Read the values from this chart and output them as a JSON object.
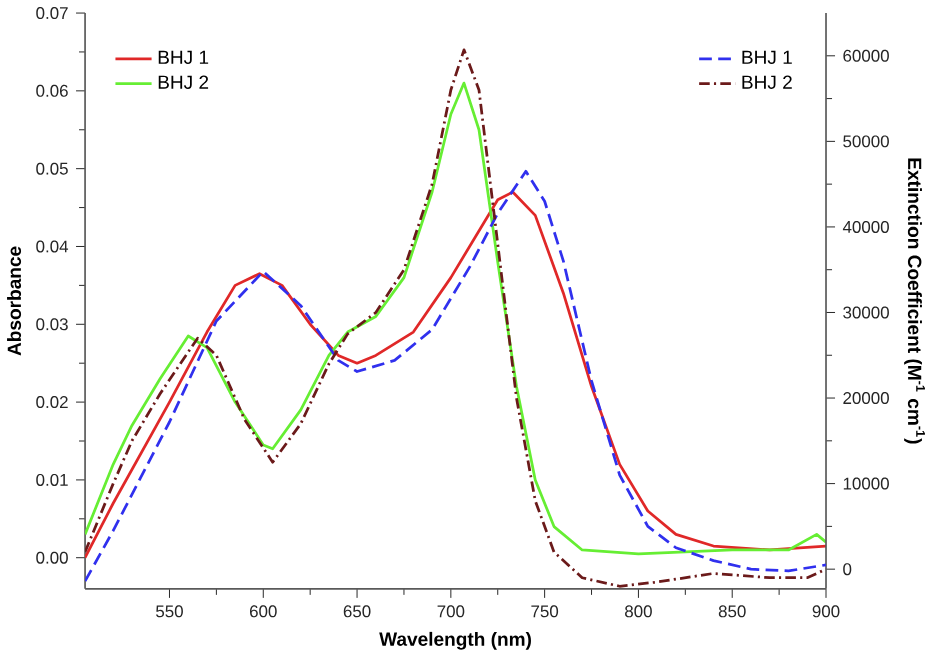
{
  "chart_data": {
    "type": "line",
    "xlabel": "Wavelength (nm)",
    "ylabel": "Absorbance",
    "y2label": "Extinction Coefficient (M$^{-1}$ cm$^{-1}$)",
    "xlim": [
      505,
      900
    ],
    "xticks": [
      550,
      600,
      650,
      700,
      750,
      800,
      850,
      900
    ],
    "ylim": [
      -0.004,
      0.07
    ],
    "yticks": [
      {
        "value": 0,
        "label": "0.00"
      },
      {
        "value": 0.01,
        "label": "0.01"
      },
      {
        "value": 0.02,
        "label": "0.02"
      },
      {
        "value": 0.03,
        "label": "0.03"
      },
      {
        "value": 0.04,
        "label": "0.04"
      },
      {
        "value": 0.05,
        "label": "0.05"
      },
      {
        "value": 0.06,
        "label": "0.06"
      },
      {
        "value": 0.07,
        "label": "0.07"
      }
    ],
    "y2lim": [
      -2300,
      65000
    ],
    "y2ticks": [
      0,
      10000,
      20000,
      30000,
      40000,
      50000,
      60000
    ],
    "grid": false,
    "legend": "top left",
    "marker": "none",
    "series": [
      {
        "name": "BHJ 1",
        "color": "#e02828",
        "line_style": "solid",
        "x": [
          505,
          520,
          550,
          570,
          585,
          598,
          610,
          625,
          640,
          650,
          660,
          680,
          700,
          715,
          725,
          733,
          745,
          760,
          775,
          790,
          805,
          820,
          840,
          870,
          900
        ],
        "values": [
          0.0,
          0.007,
          0.02,
          0.029,
          0.035,
          0.0365,
          0.035,
          0.03,
          0.026,
          0.025,
          0.026,
          0.029,
          0.036,
          0.042,
          0.046,
          0.047,
          0.044,
          0.034,
          0.022,
          0.012,
          0.006,
          0.003,
          0.0015,
          0.001,
          0.0015
        ]
      },
      {
        "name": "BHJ 2",
        "color": "#66ee33",
        "line_style": "solid",
        "x": [
          505,
          520,
          530,
          545,
          560,
          570,
          585,
          600,
          605,
          620,
          635,
          645,
          660,
          675,
          690,
          700,
          707,
          715,
          725,
          735,
          745,
          755,
          770,
          800,
          850,
          880,
          895,
          900
        ],
        "values": [
          0.003,
          0.012,
          0.017,
          0.023,
          0.0285,
          0.027,
          0.02,
          0.0145,
          0.014,
          0.019,
          0.026,
          0.029,
          0.031,
          0.036,
          0.047,
          0.057,
          0.061,
          0.055,
          0.038,
          0.022,
          0.01,
          0.004,
          0.001,
          0.0005,
          0.001,
          0.001,
          0.003,
          0.002
        ]
      },
      {
        "name": "BHJ 1",
        "color": "#3030ee",
        "line_style": "dashed",
        "axis": "y2",
        "x": [
          505,
          520,
          550,
          575,
          600,
          620,
          640,
          650,
          670,
          690,
          710,
          725,
          740,
          750,
          760,
          775,
          790,
          805,
          820,
          840,
          860,
          880,
          900
        ],
        "values": [
          -1400,
          4500,
          17200,
          29000,
          34800,
          30800,
          24400,
          23100,
          24400,
          28000,
          35300,
          41600,
          46500,
          43000,
          36000,
          22000,
          11000,
          5000,
          2500,
          1000,
          0,
          -200,
          500
        ]
      },
      {
        "name": "BHJ 2",
        "color": "#6b1a1a",
        "line_style": "dashdot",
        "axis": "y2",
        "x": [
          505,
          520,
          530,
          545,
          565,
          575,
          590,
          605,
          620,
          635,
          645,
          660,
          675,
          690,
          700,
          707,
          715,
          725,
          735,
          745,
          755,
          770,
          790,
          810,
          840,
          870,
          890,
          900
        ],
        "values": [
          2000,
          10000,
          15000,
          20500,
          27000,
          25000,
          17500,
          12500,
          17000,
          24000,
          27500,
          30000,
          35000,
          45000,
          56000,
          60700,
          56000,
          38000,
          20000,
          8000,
          2000,
          -1000,
          -2000,
          -1500,
          -500,
          -1000,
          -1000,
          0
        ]
      }
    ]
  }
}
